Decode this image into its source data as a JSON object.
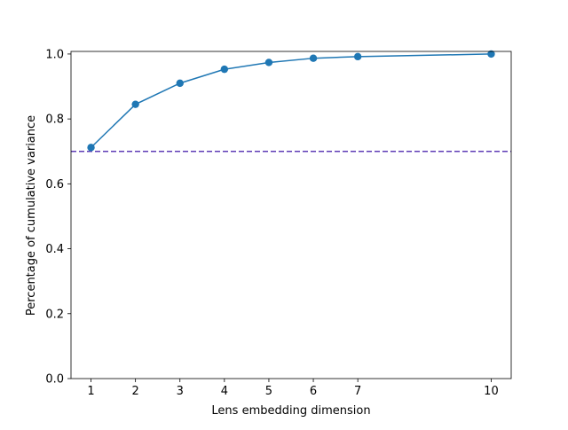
{
  "chart_data": {
    "type": "line",
    "title": "",
    "xlabel": "Lens embedding dimension",
    "ylabel": "Percentage of cumulative variance",
    "x": [
      1,
      2,
      3,
      4,
      5,
      6,
      7,
      10
    ],
    "xlim": [
      0.55,
      10.45
    ],
    "ylim": [
      0.0,
      1.008
    ],
    "xticks": [
      1,
      2,
      3,
      4,
      5,
      6,
      7,
      10
    ],
    "yticks": [
      0.0,
      0.2,
      0.4,
      0.6,
      0.8,
      1.0
    ],
    "ytick_labels": [
      "0.0",
      "0.2",
      "0.4",
      "0.6",
      "0.8",
      "1.0"
    ],
    "series": [
      {
        "values": [
          0.712,
          0.845,
          0.91,
          0.953,
          0.974,
          0.987,
          0.992,
          1.0
        ],
        "color": "#1f77b4",
        "marker": "circle"
      }
    ],
    "reference_lines": [
      {
        "orientation": "horizontal",
        "y": 0.7,
        "style": "dashed",
        "color": "#5e3bb5"
      }
    ],
    "grid": false,
    "legend": "none"
  }
}
